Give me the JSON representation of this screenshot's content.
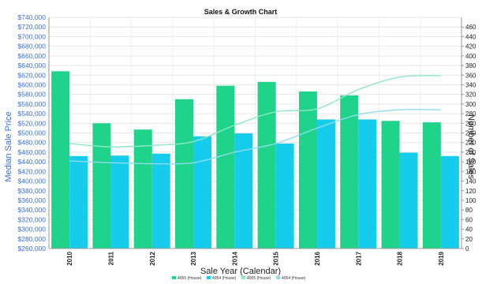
{
  "chart_data": {
    "type": "bar",
    "title": "Sales & Growth Chart",
    "xlabel": "Sale Year (Calendar)",
    "ylabel_left": "Median Sale Price",
    "ylabel_right": "Number of Sales",
    "categories": [
      "2010",
      "2011",
      "2012",
      "2013",
      "2014",
      "2015",
      "2016",
      "2017",
      "2018",
      "2019"
    ],
    "ylim_left": [
      260000,
      740000
    ],
    "ylim_right": [
      0,
      480
    ],
    "left_ticks": [
      "$260,000",
      "$280,000",
      "$300,000",
      "$320,000",
      "$340,000",
      "$360,000",
      "$380,000",
      "$400,000",
      "$420,000",
      "$440,000",
      "$460,000",
      "$480,000",
      "$500,000",
      "$520,000",
      "$540,000",
      "$560,000",
      "$580,000",
      "$600,000",
      "$620,000",
      "$640,000",
      "$660,000",
      "$680,000",
      "$700,000",
      "$720,000",
      "$740,000"
    ],
    "right_ticks": [
      "0",
      "20",
      "40",
      "60",
      "80",
      "100",
      "120",
      "140",
      "160",
      "180",
      "200",
      "220",
      "240",
      "260",
      "280",
      "300",
      "320",
      "340",
      "360",
      "380",
      "400",
      "420",
      "440",
      "460"
    ],
    "grid": true,
    "legend_position": "bottom",
    "series": [
      {
        "name": "4055 (House)",
        "kind": "bar",
        "axis": "left",
        "color": "#1fd48a",
        "values": [
          628000,
          520000,
          507000,
          570000,
          598000,
          606000,
          586000,
          578000,
          525000,
          522000
        ]
      },
      {
        "name": "4054 (House)",
        "kind": "bar",
        "axis": "left",
        "color": "#16ccec",
        "values": [
          452000,
          453000,
          457000,
          493000,
          499000,
          478000,
          528000,
          528000,
          459000,
          452000
        ]
      },
      {
        "name": "4055 (House)",
        "kind": "line",
        "axis": "right",
        "color": "#8fe6c8",
        "values": [
          218,
          211,
          214,
          222,
          256,
          284,
          290,
          330,
          356,
          359
        ]
      },
      {
        "name": "4054 (House)",
        "kind": "line",
        "axis": "right",
        "color": "#8fdcec",
        "values": [
          182,
          178,
          176,
          178,
          200,
          218,
          250,
          278,
          288,
          288
        ]
      }
    ]
  },
  "legend": [
    {
      "label": "4055 (House)",
      "color": "#1fd48a"
    },
    {
      "label": "4054 (House)",
      "color": "#16ccec"
    },
    {
      "label": "4055 (House)",
      "color": "#8fe6c8"
    },
    {
      "label": "4054 (House)",
      "color": "#8fdcec"
    }
  ]
}
